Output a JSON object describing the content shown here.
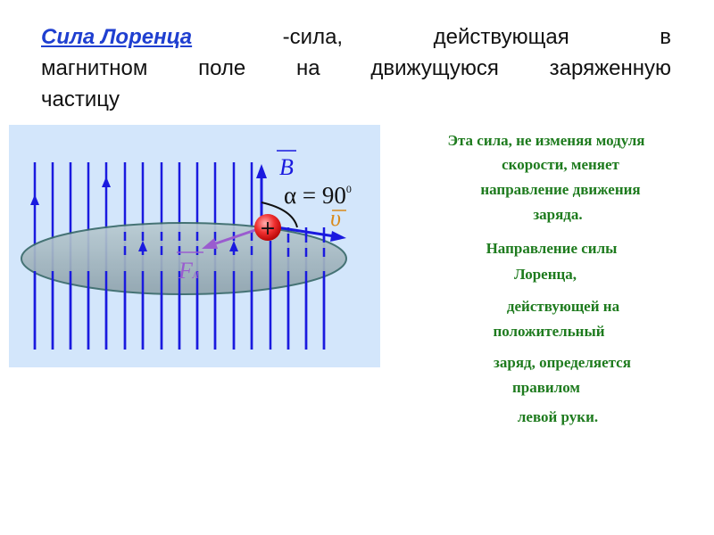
{
  "title": {
    "term": "Сила Лоренца",
    "line1_rest": [
      "-сила,",
      "действующая",
      "в"
    ],
    "line2": [
      "магнитном",
      "поле",
      "на",
      "движущуюся",
      "заряженную"
    ],
    "line3": "частицу"
  },
  "diagram": {
    "label_b": "B",
    "label_angle": "α = 90",
    "label_angle_sup": "0",
    "label_v": "υ",
    "label_f": "F",
    "label_f_sub": "л",
    "charge": "+",
    "colors": {
      "field": "#1a1adf",
      "force": "#9a5ccf",
      "velocity_label": "#d88a1a",
      "charge": "#e02020",
      "background": "#d3e6fb"
    }
  },
  "description": {
    "lines": [
      "Эта сила, не изменяя модуля",
      "скорости, меняет",
      "направление движения",
      "заряда.",
      "Направление силы",
      "Лоренца,",
      "действующей на",
      "положительный",
      "заряд, определяется",
      "правилом",
      "левой руки."
    ],
    "color": "#1e7b1e"
  }
}
